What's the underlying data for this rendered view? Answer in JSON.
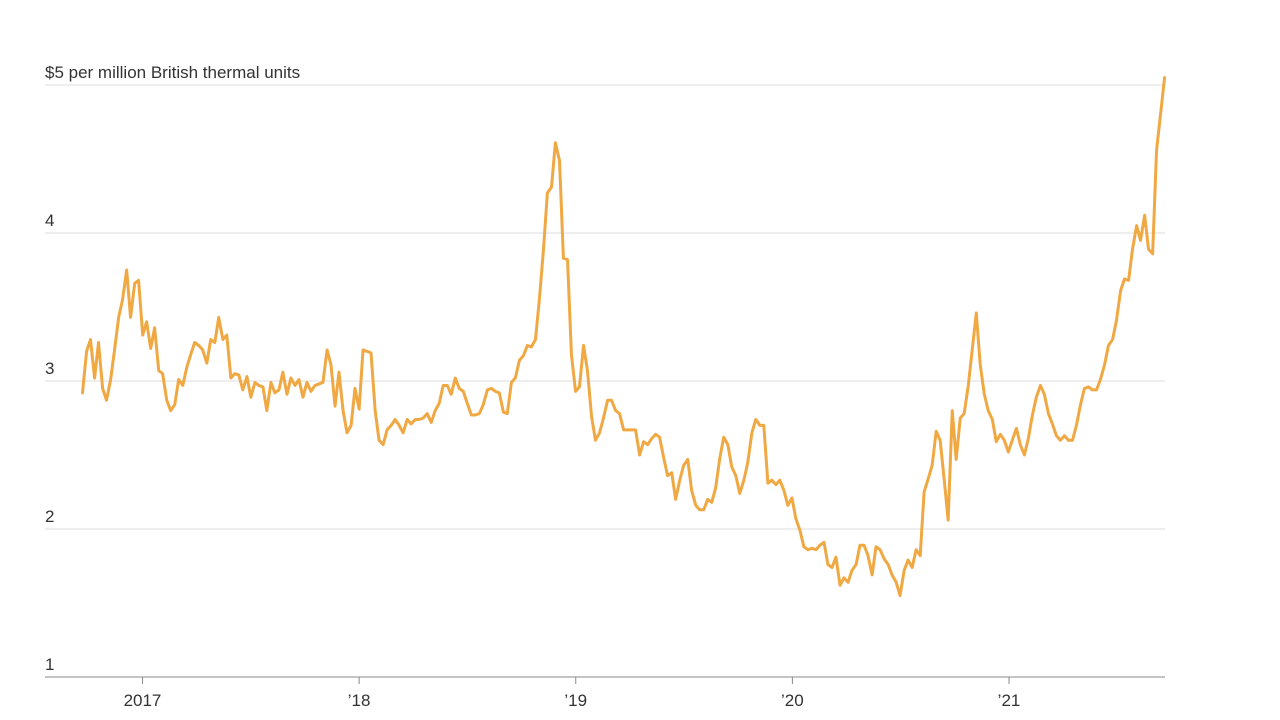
{
  "chart_data": {
    "type": "line",
    "x": [
      2016.723,
      2016.742,
      2016.76,
      2016.779,
      2016.797,
      2016.816,
      2016.834,
      2016.853,
      2016.871,
      2016.89,
      2016.908,
      2016.927,
      2016.945,
      2016.964,
      2016.982,
      2017.001,
      2017.019,
      2017.038,
      2017.056,
      2017.075,
      2017.093,
      2017.112,
      2017.13,
      2017.149,
      2017.167,
      2017.186,
      2017.204,
      2017.223,
      2017.241,
      2017.26,
      2017.278,
      2017.297,
      2017.315,
      2017.334,
      2017.352,
      2017.371,
      2017.389,
      2017.408,
      2017.426,
      2017.445,
      2017.463,
      2017.482,
      2017.5,
      2017.519,
      2017.537,
      2017.556,
      2017.574,
      2017.593,
      2017.611,
      2017.63,
      2017.648,
      2017.667,
      2017.685,
      2017.704,
      2017.722,
      2017.741,
      2017.759,
      2017.778,
      2017.796,
      2017.815,
      2017.833,
      2017.852,
      2017.87,
      2017.889,
      2017.907,
      2017.926,
      2017.944,
      2017.963,
      2017.981,
      2018.0,
      2018.018,
      2018.037,
      2018.055,
      2018.074,
      2018.092,
      2018.111,
      2018.129,
      2018.148,
      2018.166,
      2018.185,
      2018.203,
      2018.222,
      2018.24,
      2018.259,
      2018.277,
      2018.296,
      2018.314,
      2018.333,
      2018.351,
      2018.37,
      2018.388,
      2018.407,
      2018.425,
      2018.444,
      2018.462,
      2018.481,
      2018.499,
      2018.518,
      2018.536,
      2018.555,
      2018.573,
      2018.592,
      2018.61,
      2018.629,
      2018.647,
      2018.666,
      2018.684,
      2018.703,
      2018.721,
      2018.74,
      2018.758,
      2018.777,
      2018.795,
      2018.814,
      2018.832,
      2018.851,
      2018.869,
      2018.888,
      2018.906,
      2018.925,
      2018.943,
      2018.962,
      2018.98,
      2018.999,
      2019.017,
      2019.036,
      2019.054,
      2019.073,
      2019.091,
      2019.11,
      2019.128,
      2019.147,
      2019.165,
      2019.184,
      2019.202,
      2019.221,
      2019.239,
      2019.258,
      2019.276,
      2019.295,
      2019.313,
      2019.332,
      2019.35,
      2019.369,
      2019.387,
      2019.406,
      2019.424,
      2019.443,
      2019.461,
      2019.48,
      2019.498,
      2019.517,
      2019.535,
      2019.554,
      2019.572,
      2019.591,
      2019.609,
      2019.628,
      2019.646,
      2019.665,
      2019.683,
      2019.702,
      2019.72,
      2019.739,
      2019.757,
      2019.776,
      2019.794,
      2019.813,
      2019.831,
      2019.85,
      2019.868,
      2019.887,
      2019.905,
      2019.924,
      2019.942,
      2019.961,
      2019.979,
      2019.998,
      2020.016,
      2020.035,
      2020.053,
      2020.072,
      2020.09,
      2020.109,
      2020.127,
      2020.146,
      2020.164,
      2020.183,
      2020.201,
      2020.22,
      2020.238,
      2020.257,
      2020.275,
      2020.294,
      2020.312,
      2020.331,
      2020.349,
      2020.368,
      2020.386,
      2020.405,
      2020.423,
      2020.442,
      2020.46,
      2020.479,
      2020.497,
      2020.516,
      2020.534,
      2020.553,
      2020.571,
      2020.59,
      2020.608,
      2020.627,
      2020.645,
      2020.664,
      2020.682,
      2020.701,
      2020.719,
      2020.738,
      2020.756,
      2020.775,
      2020.793,
      2020.812,
      2020.83,
      2020.849,
      2020.867,
      2020.886,
      2020.904,
      2020.923,
      2020.941,
      2020.96,
      2020.978,
      2020.997,
      2021.015,
      2021.034,
      2021.052,
      2021.071,
      2021.089,
      2021.108,
      2021.126,
      2021.145,
      2021.163,
      2021.182,
      2021.2,
      2021.219,
      2021.237,
      2021.256,
      2021.274,
      2021.293,
      2021.311,
      2021.33,
      2021.348,
      2021.367,
      2021.385,
      2021.404,
      2021.422,
      2021.441,
      2021.459,
      2021.478,
      2021.496,
      2021.515,
      2021.533,
      2021.552,
      2021.57,
      2021.589,
      2021.607,
      2021.626,
      2021.644,
      2021.663,
      2021.681,
      2021.7,
      2021.718
    ],
    "values": [
      2.92,
      3.2,
      3.28,
      3.02,
      3.26,
      2.95,
      2.87,
      3.01,
      3.21,
      3.43,
      3.55,
      3.75,
      3.43,
      3.66,
      3.68,
      3.31,
      3.4,
      3.22,
      3.36,
      3.07,
      3.05,
      2.87,
      2.8,
      2.84,
      3.01,
      2.97,
      3.09,
      3.18,
      3.26,
      3.24,
      3.21,
      3.12,
      3.28,
      3.26,
      3.43,
      3.28,
      3.31,
      3.02,
      3.05,
      3.04,
      2.94,
      3.03,
      2.89,
      2.99,
      2.97,
      2.96,
      2.8,
      2.99,
      2.92,
      2.94,
      3.06,
      2.91,
      3.02,
      2.97,
      3.01,
      2.89,
      2.99,
      2.93,
      2.97,
      2.98,
      2.99,
      3.21,
      3.11,
      2.83,
      3.06,
      2.8,
      2.65,
      2.7,
      2.95,
      2.81,
      3.21,
      3.2,
      3.19,
      2.8,
      2.6,
      2.57,
      2.67,
      2.7,
      2.74,
      2.7,
      2.65,
      2.74,
      2.71,
      2.74,
      2.74,
      2.75,
      2.78,
      2.72,
      2.8,
      2.85,
      2.97,
      2.97,
      2.91,
      3.02,
      2.95,
      2.93,
      2.85,
      2.77,
      2.77,
      2.78,
      2.84,
      2.94,
      2.95,
      2.93,
      2.92,
      2.79,
      2.78,
      2.99,
      3.02,
      3.14,
      3.17,
      3.24,
      3.23,
      3.28,
      3.55,
      3.89,
      4.27,
      4.31,
      4.61,
      4.49,
      3.83,
      3.82,
      3.18,
      2.93,
      2.96,
      3.24,
      3.07,
      2.76,
      2.6,
      2.65,
      2.75,
      2.87,
      2.87,
      2.8,
      2.78,
      2.67,
      2.67,
      2.67,
      2.67,
      2.5,
      2.59,
      2.57,
      2.61,
      2.64,
      2.62,
      2.48,
      2.36,
      2.38,
      2.2,
      2.33,
      2.43,
      2.47,
      2.26,
      2.16,
      2.13,
      2.13,
      2.2,
      2.18,
      2.28,
      2.48,
      2.62,
      2.57,
      2.42,
      2.36,
      2.24,
      2.33,
      2.45,
      2.65,
      2.74,
      2.7,
      2.7,
      2.31,
      2.33,
      2.3,
      2.33,
      2.26,
      2.16,
      2.21,
      2.07,
      1.99,
      1.88,
      1.86,
      1.87,
      1.86,
      1.89,
      1.91,
      1.76,
      1.74,
      1.81,
      1.62,
      1.67,
      1.64,
      1.72,
      1.76,
      1.89,
      1.89,
      1.82,
      1.69,
      1.88,
      1.86,
      1.8,
      1.76,
      1.69,
      1.64,
      1.55,
      1.72,
      1.79,
      1.74,
      1.86,
      1.82,
      2.25,
      2.34,
      2.43,
      2.66,
      2.6,
      2.33,
      2.06,
      2.8,
      2.47,
      2.75,
      2.78,
      2.97,
      3.21,
      3.46,
      3.11,
      2.91,
      2.8,
      2.74,
      2.59,
      2.64,
      2.6,
      2.52,
      2.6,
      2.68,
      2.57,
      2.5,
      2.61,
      2.77,
      2.89,
      2.97,
      2.91,
      2.78,
      2.71,
      2.63,
      2.6,
      2.63,
      2.6,
      2.6,
      2.7,
      2.84,
      2.95,
      2.96,
      2.94,
      2.94,
      3.01,
      3.11,
      3.24,
      3.28,
      3.41,
      3.61,
      3.69,
      3.68,
      3.89,
      4.05,
      3.95,
      4.12,
      3.89,
      3.86,
      4.56,
      4.81,
      5.05
    ],
    "color": "#f0a843",
    "xlim": [
      2016.55,
      2021.72
    ],
    "xticks": [
      2017,
      {
        "value": 2018,
        "label": "’18"
      },
      {
        "value": 2019,
        "label": "’19"
      },
      {
        "value": 2020,
        "label": "’20"
      },
      {
        "value": 2021,
        "label": "’21"
      }
    ],
    "ylim": [
      1,
      5
    ],
    "yticks": [
      1,
      2,
      3,
      4,
      {
        "value": 5,
        "label": "$5 per million British thermal units"
      }
    ],
    "grid": true
  }
}
